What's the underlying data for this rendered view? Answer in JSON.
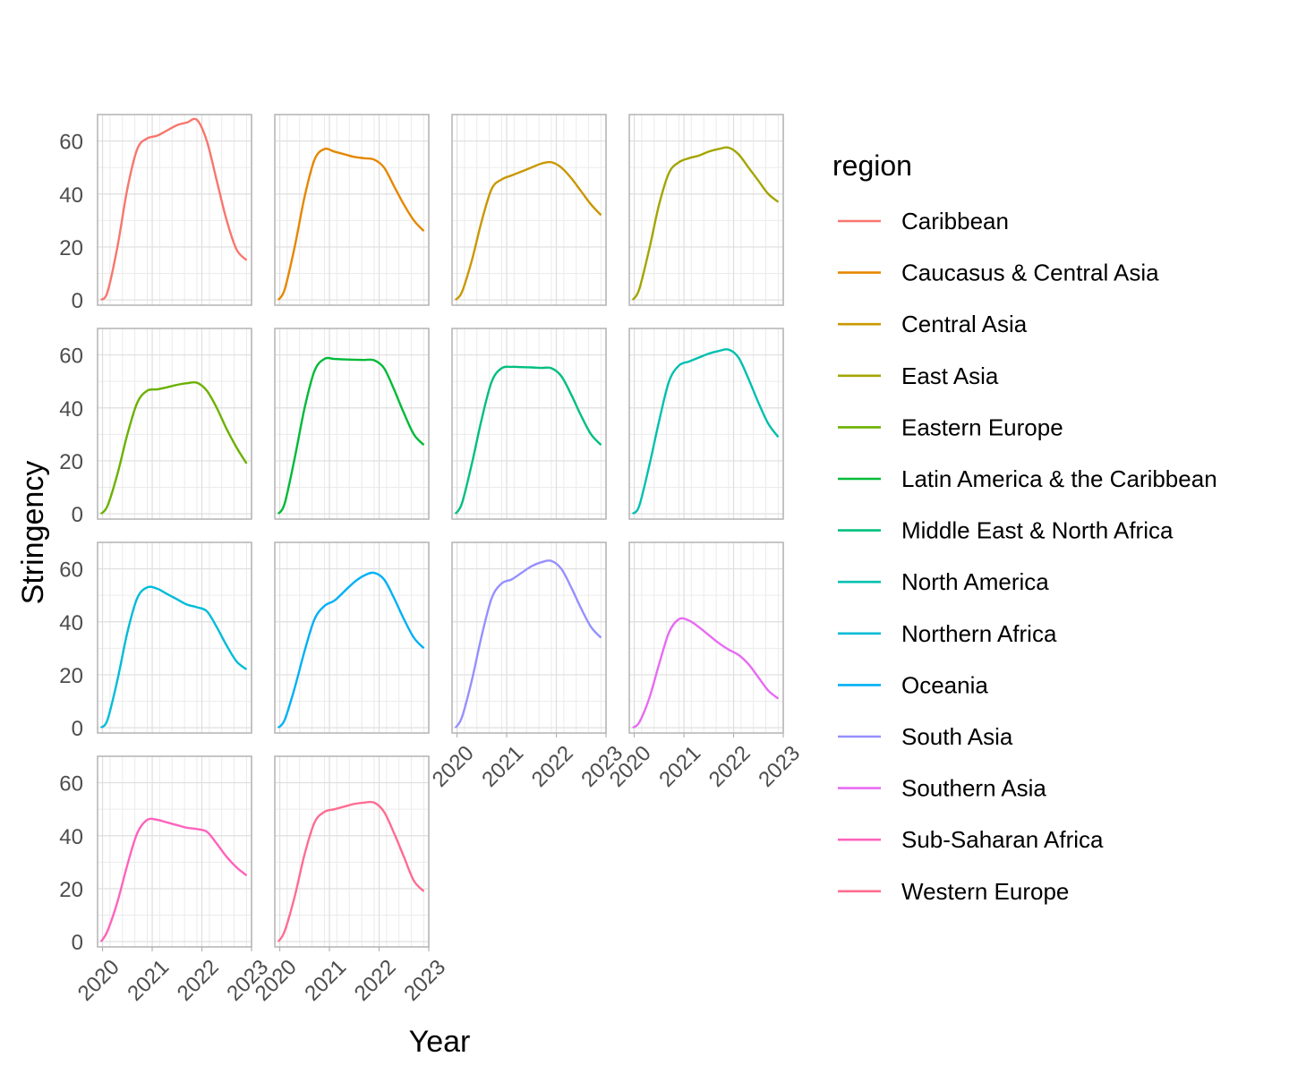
{
  "chart_data": {
    "type": "line",
    "title": "",
    "xlabel": "Year",
    "ylabel": "Stringency",
    "legend_title": "region",
    "legend_position": "right",
    "grid": true,
    "facet_layout": "wrap",
    "xlim": [
      2019.9,
      2023.0
    ],
    "ylim": [
      -2,
      70
    ],
    "x_ticks": [
      "2020",
      "2021",
      "2022",
      "2023"
    ],
    "y_ticks": [
      "0",
      "20",
      "40",
      "60"
    ],
    "x": [
      2019.97,
      2020.1,
      2020.3,
      2020.5,
      2020.7,
      2020.9,
      2021.1,
      2021.3,
      2021.5,
      2021.7,
      2021.9,
      2022.1,
      2022.3,
      2022.5,
      2022.7,
      2022.9
    ],
    "series": [
      {
        "name": "Caribbean",
        "color": "#F8766D",
        "values": [
          0,
          3,
          20,
          42,
          57,
          61,
          62,
          64,
          66,
          67,
          68,
          60,
          45,
          30,
          19,
          15
        ]
      },
      {
        "name": "Caucasus & Central Asia",
        "color": "#E58700",
        "values": [
          0,
          4,
          20,
          39,
          53,
          57,
          56,
          55,
          54,
          53.5,
          53,
          50,
          43,
          36,
          30,
          26
        ]
      },
      {
        "name": "Central Asia",
        "color": "#C99800",
        "values": [
          0,
          3,
          15,
          30,
          42,
          45.5,
          47,
          48.5,
          50,
          51.5,
          52,
          50,
          46,
          41,
          36,
          32
        ]
      },
      {
        "name": "East Asia",
        "color": "#A3A500",
        "values": [
          0,
          4,
          19,
          36,
          48,
          52,
          53.5,
          54.5,
          56,
          57,
          57.5,
          55,
          50,
          45,
          40,
          37
        ]
      },
      {
        "name": "Eastern Europe",
        "color": "#6BB100",
        "values": [
          0,
          3,
          15,
          30,
          42,
          46.5,
          47,
          47.8,
          48.7,
          49.3,
          49.5,
          46.5,
          40,
          32,
          25,
          19
        ]
      },
      {
        "name": "Latin America & the Caribbean",
        "color": "#00BA38",
        "values": [
          0,
          4,
          21,
          40,
          54,
          58.5,
          58.5,
          58.3,
          58.2,
          58.1,
          58,
          55,
          47,
          38,
          30,
          26
        ]
      },
      {
        "name": "Middle East & North Africa",
        "color": "#00BF7D",
        "values": [
          0,
          4,
          19,
          36,
          50,
          55,
          55.5,
          55.4,
          55.3,
          55.1,
          55,
          52,
          45,
          37,
          30,
          26
        ]
      },
      {
        "name": "North America",
        "color": "#00C0AF",
        "values": [
          0,
          3,
          18,
          35,
          50,
          56,
          57.5,
          59,
          60.5,
          61.5,
          62,
          59,
          51,
          42,
          34,
          29
        ]
      },
      {
        "name": "Northern Africa",
        "color": "#00BCD8",
        "values": [
          0,
          3,
          18,
          36,
          49,
          53,
          52.5,
          50.5,
          48.5,
          46.5,
          45.5,
          44,
          38,
          31,
          25,
          22
        ]
      },
      {
        "name": "Oceania",
        "color": "#00B0F6",
        "values": [
          0,
          3,
          15,
          29,
          41,
          46,
          48,
          51.5,
          55,
          57.5,
          58.5,
          56,
          49,
          41,
          34,
          30
        ]
      },
      {
        "name": "South Asia",
        "color": "#9590FF",
        "values": [
          0,
          4,
          18,
          35,
          49,
          54.5,
          56,
          58.5,
          61,
          62.5,
          63,
          60,
          53,
          45,
          38,
          34
        ]
      },
      {
        "name": "Southern Asia",
        "color": "#E76BF3",
        "values": [
          0,
          2,
          11,
          24,
          36,
          41,
          40.5,
          38,
          35,
          32,
          29.5,
          27.5,
          24,
          19,
          14,
          11
        ]
      },
      {
        "name": "Sub-Saharan Africa",
        "color": "#FF62BC",
        "values": [
          0,
          4,
          15,
          29,
          41,
          46,
          46,
          45,
          44,
          43,
          42.5,
          41.5,
          37,
          32,
          28,
          25
        ]
      },
      {
        "name": "Western Europe",
        "color": "#FF6C91",
        "values": [
          0,
          4,
          17,
          33,
          45,
          49,
          50,
          51,
          52,
          52.5,
          52.5,
          49,
          41,
          32,
          23,
          19
        ]
      }
    ]
  }
}
